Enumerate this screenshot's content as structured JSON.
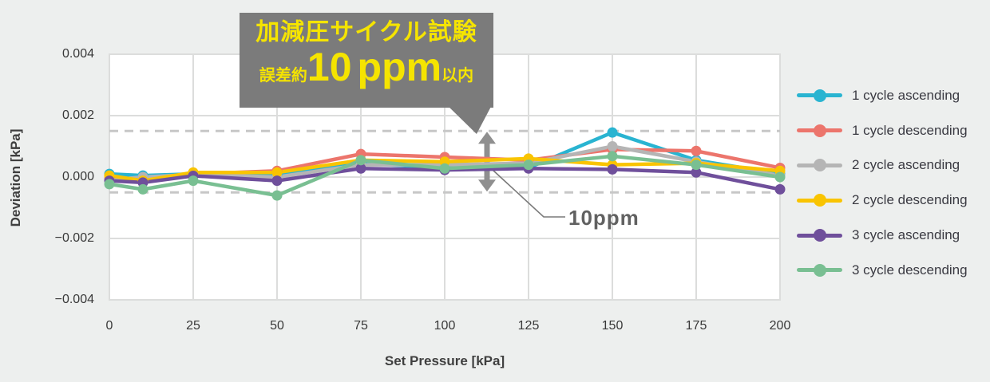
{
  "chart_data": {
    "type": "line",
    "xlabel": "Set Pressure [kPa]",
    "ylabel": "Deviation [kPa]",
    "xlim": [
      0,
      200
    ],
    "ylim": [
      -0.004,
      0.004
    ],
    "grid": true,
    "legend_position": "right",
    "x_ticks": [
      0,
      25,
      50,
      75,
      100,
      125,
      150,
      175,
      200
    ],
    "y_ticks": [
      {
        "value": 0.004,
        "label": "0.004"
      },
      {
        "value": 0.002,
        "label": "0.002"
      },
      {
        "value": 0.0,
        "label": "0.000"
      },
      {
        "value": -0.002,
        "label": "−0.002"
      },
      {
        "value": -0.004,
        "label": "−0.004"
      }
    ],
    "x": [
      0,
      10,
      25,
      50,
      75,
      100,
      125,
      150,
      175,
      200
    ],
    "series": [
      {
        "name": "1 cycle ascending",
        "color": "#29B4D1",
        "values": [
          0.0001,
          5e-05,
          0.0001,
          5e-05,
          0.00045,
          0.0003,
          0.0003,
          0.00145,
          0.00055,
          0.0001
        ]
      },
      {
        "name": "1 cycle descending",
        "color": "#EC756C",
        "values": [
          -5e-05,
          -0.0001,
          0.0001,
          0.0002,
          0.00075,
          0.00065,
          0.00055,
          0.0009,
          0.00085,
          0.0003
        ]
      },
      {
        "name": "2 cycle ascending",
        "color": "#B5B5B5",
        "values": [
          -0.0001,
          0.0,
          8e-05,
          0.0,
          0.0004,
          0.0004,
          0.00045,
          0.001,
          0.0005,
          5e-05
        ]
      },
      {
        "name": "2 cycle descending",
        "color": "#F9C401",
        "values": [
          5e-05,
          -0.00012,
          0.00015,
          0.00015,
          0.00055,
          0.0005,
          0.0006,
          0.0004,
          0.00045,
          0.0002
        ]
      },
      {
        "name": "3 cycle ascending",
        "color": "#6F4F9B",
        "values": [
          -0.00012,
          -0.00018,
          4e-05,
          -0.00012,
          0.00028,
          0.00023,
          0.00028,
          0.00025,
          0.00015,
          -0.0004
        ]
      },
      {
        "name": "3 cycle descending",
        "color": "#79BF92",
        "values": [
          -0.00023,
          -0.0004,
          -0.00012,
          -0.0006,
          0.00055,
          0.00028,
          0.0004,
          0.00068,
          0.0004,
          0.0
        ]
      }
    ],
    "tolerance_band": {
      "upper_kpa": 0.0015,
      "lower_kpa": -0.0005,
      "style": "dashed",
      "label": "10ppm"
    },
    "annotation_callout": {
      "title": "加減圧サイクル試験",
      "error_prefix": "誤差約",
      "error_value": "10",
      "error_unit": "ppm",
      "error_suffix": "以内",
      "bg_color": "#7B7B7B",
      "text_color": "#F5E400"
    }
  },
  "colors": {
    "background": "#EDEFEE",
    "plot_background": "#FFFFFF",
    "gridline": "#DCDDDC",
    "dashed_line": "#C7C7C7",
    "arrow": "#8F8F8F",
    "axis_text": "#3F3F3F"
  }
}
